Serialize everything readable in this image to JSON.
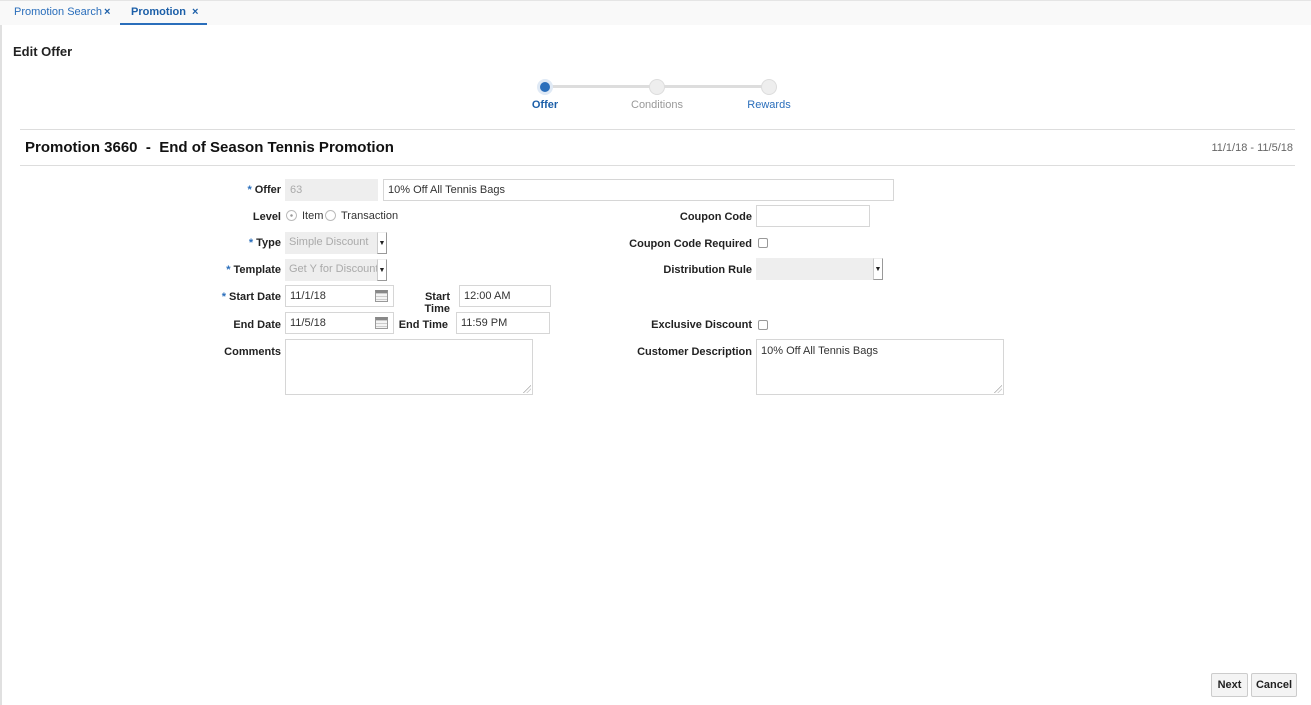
{
  "tabs": [
    {
      "label": "Promotion Search",
      "active": false
    },
    {
      "label": "Promotion",
      "active": true
    }
  ],
  "close_glyph": "×",
  "page_title": "Edit Offer",
  "train": {
    "steps": [
      "Offer",
      "Conditions",
      "Rewards"
    ],
    "current": 0
  },
  "header": {
    "title": "Promotion 3660  -  End of Season Tennis Promotion",
    "date_range": "11/1/18 - 11/5/18"
  },
  "form": {
    "offer": {
      "label": "Offer",
      "id": "63",
      "description": "10% Off All Tennis Bags"
    },
    "level": {
      "label": "Level",
      "options": [
        "Item",
        "Transaction"
      ],
      "selected": "Item"
    },
    "type": {
      "label": "Type",
      "value": "Simple Discount"
    },
    "template": {
      "label": "Template",
      "value": "Get Y for Discount"
    },
    "start_date": {
      "label": "Start Date",
      "value": "11/1/18"
    },
    "start_time": {
      "label": "Start Time",
      "value": "12:00 AM"
    },
    "end_date": {
      "label": "End Date",
      "value": "11/5/18"
    },
    "end_time": {
      "label": "End Time",
      "value": "11:59 PM"
    },
    "comments": {
      "label": "Comments",
      "value": ""
    },
    "coupon_code": {
      "label": "Coupon Code",
      "value": ""
    },
    "coupon_code_required": {
      "label": "Coupon Code Required",
      "checked": false
    },
    "distribution_rule": {
      "label": "Distribution Rule",
      "value": ""
    },
    "exclusive_discount": {
      "label": "Exclusive Discount",
      "checked": false
    },
    "customer_description": {
      "label": "Customer Description",
      "value": "10% Off All Tennis Bags"
    }
  },
  "buttons": {
    "next": "Next",
    "cancel": "Cancel"
  },
  "colors": {
    "accent": "#2a6ebb"
  }
}
